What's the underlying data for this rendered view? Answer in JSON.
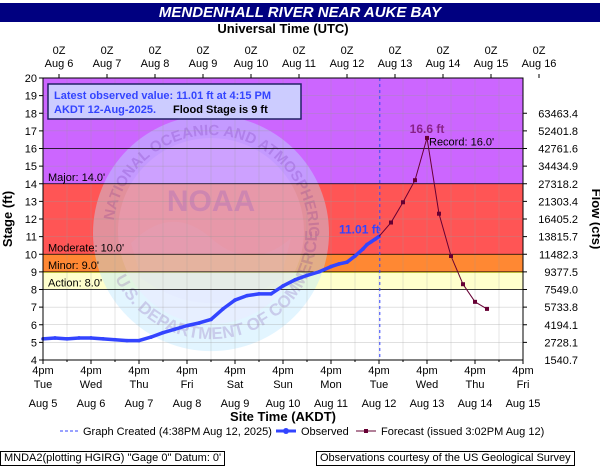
{
  "title": "MENDENHALL RIVER NEAR AUKE BAY",
  "top_axis_label": "Universal Time (UTC)",
  "bottom_axis_label": "Site Time (AKDT)",
  "y_left_label": "Stage (ft)",
  "y_right_label": "Flow (cfs)",
  "watermark": {
    "noaa_ring": "NATIONAL OCEANIC AND ATMOSPHERIC ADMINISTRATION",
    "noaa_center": "NOAA",
    "doc_ring": "U.S. DEPARTMENT OF COMMERCE"
  },
  "info_box": {
    "line1": "Latest observed value: 11.01 ft at 4:15 PM",
    "line2_prefix": "AKDT 12-Aug-2025.",
    "line2_suffix": "Flood Stage is 9 ft"
  },
  "legend": {
    "graph_created": "Graph Created (4:38PM Aug 12, 2025)",
    "observed": "Observed",
    "forecast": "Forecast (issued 3:02PM Aug 12)"
  },
  "footer": {
    "left": "MNDA2(plotting HGIRG) \"Gage 0\" Datum: 0'",
    "right": "Observations courtesy of the US Geological Survey"
  },
  "colors": {
    "record_zone": "#cc66ff",
    "major_zone": "#ff5555",
    "moderate_zone": "#ff8833",
    "minor_zone": "#ffff33",
    "action_zone": "#ffffcc",
    "observed": "#3344ff",
    "forecast": "#660033",
    "title_bg": "#000080"
  },
  "chart_data": {
    "type": "line",
    "ylim": [
      4,
      20
    ],
    "y_ticks": [
      4,
      5,
      6,
      7,
      8,
      9,
      10,
      11,
      12,
      13,
      14,
      15,
      16,
      17,
      18,
      19,
      20
    ],
    "xlim_hours_labels": [
      "4pm Aug 5",
      "4pm Aug 15"
    ],
    "bottom_ticks": [
      {
        "time": "4pm",
        "day": "Tue",
        "date": "Aug 5"
      },
      {
        "time": "4pm",
        "day": "Wed",
        "date": "Aug 6"
      },
      {
        "time": "4pm",
        "day": "Thu",
        "date": "Aug 7"
      },
      {
        "time": "4pm",
        "day": "Fri",
        "date": "Aug 8"
      },
      {
        "time": "4pm",
        "day": "Sat",
        "date": "Aug 9"
      },
      {
        "time": "4pm",
        "day": "Sun",
        "date": "Aug 10"
      },
      {
        "time": "4pm",
        "day": "Mon",
        "date": "Aug 11"
      },
      {
        "time": "4pm",
        "day": "Tue",
        "date": "Aug 12"
      },
      {
        "time": "4pm",
        "day": "Wed",
        "date": "Aug 13"
      },
      {
        "time": "4pm",
        "day": "Thu",
        "date": "Aug 14"
      },
      {
        "time": "4pm",
        "day": "Fri",
        "date": "Aug 15"
      }
    ],
    "top_ticks": [
      {
        "time": "0Z",
        "date": "Aug 6"
      },
      {
        "time": "0Z",
        "date": "Aug 7"
      },
      {
        "time": "0Z",
        "date": "Aug 8"
      },
      {
        "time": "0Z",
        "date": "Aug 9"
      },
      {
        "time": "0Z",
        "date": "Aug 10"
      },
      {
        "time": "0Z",
        "date": "Aug 11"
      },
      {
        "time": "0Z",
        "date": "Aug 12"
      },
      {
        "time": "0Z",
        "date": "Aug 13"
      },
      {
        "time": "0Z",
        "date": "Aug 14"
      },
      {
        "time": "0Z",
        "date": "Aug 15"
      },
      {
        "time": "0Z",
        "date": "Aug 16"
      }
    ],
    "flow_ticks": [
      {
        "stage": 5,
        "label": "2728.1"
      },
      {
        "stage": 6,
        "label": "4194.1"
      },
      {
        "stage": 7,
        "label": "5733.8"
      },
      {
        "stage": 8,
        "label": "7549.0"
      },
      {
        "stage": 9,
        "label": "9377.5"
      },
      {
        "stage": 10,
        "label": "11482.3"
      },
      {
        "stage": 11,
        "label": "13815.7"
      },
      {
        "stage": 12,
        "label": "16405.2"
      },
      {
        "stage": 13,
        "label": "21303.4"
      },
      {
        "stage": 14,
        "label": "27318.2"
      },
      {
        "stage": 15,
        "label": "34434.9"
      },
      {
        "stage": 16,
        "label": "42761.6"
      },
      {
        "stage": 17,
        "label": "52401.8"
      },
      {
        "stage": 18,
        "label": "63463.4"
      }
    ],
    "flow_bottom_label": "1540.7",
    "thresholds": [
      {
        "name": "Record",
        "label": "Record: 16.0'",
        "value": 16.0
      },
      {
        "name": "Major",
        "label": "Major: 14.0'",
        "value": 14.0
      },
      {
        "name": "Moderate",
        "label": "Moderate: 10.0'",
        "value": 10.0
      },
      {
        "name": "Minor",
        "label": "Minor: 9.0'",
        "value": 9.0
      },
      {
        "name": "Action",
        "label": "Action: 8.0'",
        "value": 8.0
      }
    ],
    "graph_created_hours": 168.4,
    "observed": {
      "name": "Observed",
      "hours": [
        0,
        6,
        12,
        18,
        24,
        30,
        36,
        42,
        48,
        54,
        60,
        66,
        72,
        78,
        84,
        90,
        96,
        102,
        108,
        114,
        120,
        126,
        132,
        138,
        144,
        148,
        152,
        156,
        160,
        162,
        164,
        166,
        168
      ],
      "values": [
        5.2,
        5.25,
        5.2,
        5.25,
        5.25,
        5.2,
        5.15,
        5.1,
        5.1,
        5.3,
        5.55,
        5.75,
        5.95,
        6.1,
        6.3,
        6.9,
        7.4,
        7.65,
        7.75,
        7.75,
        8.2,
        8.55,
        8.8,
        9.0,
        9.3,
        9.45,
        9.55,
        9.9,
        10.3,
        10.55,
        10.7,
        10.85,
        11.01
      ],
      "label": "11.01 ft"
    },
    "forecast": {
      "name": "Forecast",
      "hours": [
        168,
        174,
        180,
        186,
        192,
        198,
        204,
        210,
        216,
        222
      ],
      "values": [
        11.01,
        11.8,
        12.95,
        14.2,
        16.6,
        12.3,
        9.9,
        8.3,
        7.3,
        6.9
      ],
      "peak_label": "16.6 ft"
    }
  }
}
